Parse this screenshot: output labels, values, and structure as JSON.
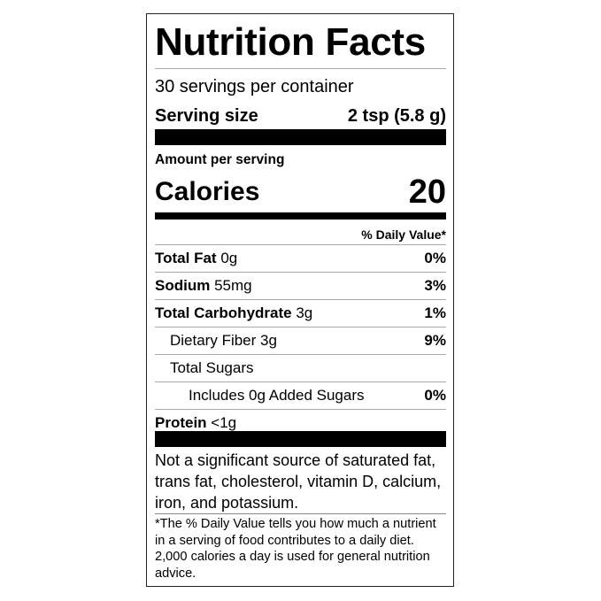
{
  "title": "Nutrition Facts",
  "servings_per_container": "30 servings per container",
  "serving_size": {
    "label": "Serving size",
    "value": "2 tsp (5.8 g)"
  },
  "amount_per_serving": "Amount per serving",
  "calories": {
    "label": "Calories",
    "value": "20"
  },
  "daily_value_header": "% Daily Value*",
  "nutrients": [
    {
      "name": "Total Fat",
      "amount": "0g",
      "dv": "0%",
      "bold": true,
      "indent": 0
    },
    {
      "name": "Sodium",
      "amount": "55mg",
      "dv": "3%",
      "bold": true,
      "indent": 0
    },
    {
      "name": "Total Carbohydrate",
      "amount": "3g",
      "dv": "1%",
      "bold": true,
      "indent": 0
    },
    {
      "name": "Dietary Fiber",
      "amount": "3g",
      "dv": "9%",
      "bold": false,
      "indent": 1
    },
    {
      "name": "Total Sugars",
      "amount": "",
      "dv": "",
      "bold": false,
      "indent": 1
    },
    {
      "name": "Includes 0g Added Sugars",
      "amount": "",
      "dv": "0%",
      "bold": false,
      "indent": 2
    },
    {
      "name": "Protein",
      "amount": "<1g",
      "dv": "",
      "bold": true,
      "indent": 0
    }
  ],
  "not_significant": "Not a significant source of saturated fat, trans fat, cholesterol, vitamin D, calcium, iron, and potassium.",
  "footnote": "*The % Daily Value tells you how much a nutrient in a serving of food contributes to a daily diet. 2,000 calories a day is used for general nutrition advice."
}
